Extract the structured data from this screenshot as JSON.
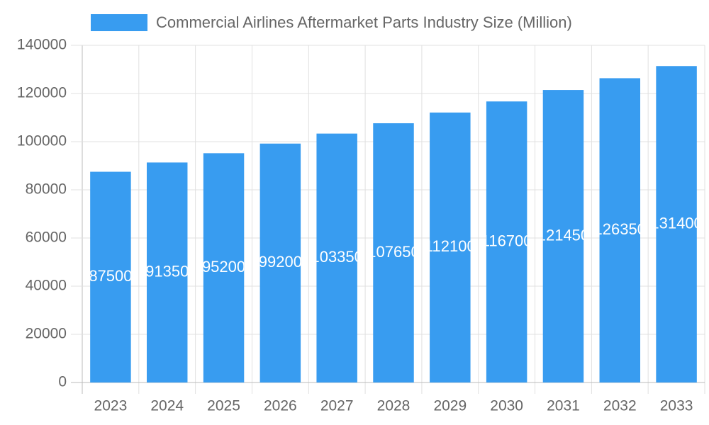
{
  "chart_data": {
    "type": "bar",
    "categories": [
      "2023",
      "2024",
      "2025",
      "2026",
      "2027",
      "2028",
      "2029",
      "2030",
      "2031",
      "2032",
      "2033"
    ],
    "series": [
      {
        "name": "Commercial Airlines Aftermarket Parts Industry Size (Million)",
        "color": "#389cf0",
        "values": [
          87500,
          91350,
          95200,
          99200,
          103350,
          107650,
          112100,
          116700,
          121450,
          126350,
          131400
        ]
      }
    ],
    "ylim": [
      0,
      140000
    ],
    "yticks": [
      0,
      20000,
      40000,
      60000,
      80000,
      100000,
      120000,
      140000
    ],
    "grid": true
  }
}
